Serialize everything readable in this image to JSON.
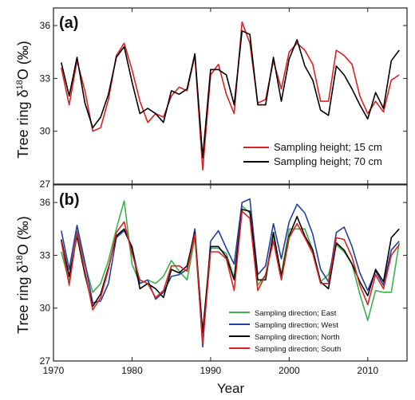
{
  "chart_data": [
    {
      "type": "line",
      "panel_label": "(a)",
      "ylabel": "Tree ring δ18O (‰)",
      "ylim": [
        27,
        37
      ],
      "yticks": [
        27,
        30,
        33,
        36
      ],
      "xlim": [
        1970,
        2015
      ],
      "legend": "bottom-right",
      "x": [
        1971,
        1972,
        1973,
        1974,
        1975,
        1976,
        1977,
        1978,
        1979,
        1980,
        1981,
        1982,
        1983,
        1984,
        1985,
        1986,
        1987,
        1988,
        1989,
        1990,
        1991,
        1992,
        1993,
        1994,
        1995,
        1996,
        1997,
        1998,
        1999,
        2000,
        2001,
        2002,
        2003,
        2004,
        2005,
        2006,
        2007,
        2008,
        2009,
        2010,
        2011,
        2012,
        2013,
        2014
      ],
      "series": [
        {
          "name": "Sampling height; 15 cm",
          "color": "#e02020",
          "values": [
            33.6,
            31.5,
            34.0,
            32.3,
            30.0,
            30.2,
            31.8,
            34.3,
            35.0,
            33.5,
            31.7,
            30.5,
            31.0,
            30.8,
            32.0,
            32.5,
            32.3,
            34.3,
            27.8,
            33.2,
            33.8,
            32.1,
            31.0,
            36.2,
            35.0,
            31.6,
            31.8,
            34.0,
            32.4,
            34.5,
            35.0,
            34.6,
            33.8,
            31.7,
            31.7,
            34.6,
            34.3,
            33.8,
            32.0,
            31.0,
            31.7,
            31.1,
            32.9,
            33.2
          ]
        },
        {
          "name": "Sampling height; 70 cm",
          "color": "#000000",
          "values": [
            33.9,
            32.0,
            34.2,
            31.6,
            30.2,
            30.8,
            32.1,
            34.2,
            34.8,
            32.8,
            31.0,
            31.3,
            31.0,
            30.5,
            32.3,
            32.1,
            32.4,
            34.4,
            28.5,
            33.5,
            33.5,
            33.2,
            31.5,
            35.7,
            35.5,
            31.5,
            31.5,
            34.2,
            31.7,
            34.1,
            35.2,
            33.7,
            32.9,
            31.2,
            30.9,
            33.7,
            33.2,
            32.4,
            31.5,
            30.7,
            32.2,
            31.3,
            34.0,
            34.6
          ]
        }
      ]
    },
    {
      "type": "line",
      "panel_label": "(b)",
      "ylabel": "Tree ring δ18O (‰)",
      "xlabel": "Year",
      "ylim": [
        27,
        37
      ],
      "yticks": [
        27,
        30,
        33,
        36
      ],
      "xlim": [
        1970,
        2015
      ],
      "xticks": [
        1970,
        1980,
        1990,
        2000,
        2010
      ],
      "legend": "bottom-right",
      "x": [
        1971,
        1972,
        1973,
        1974,
        1975,
        1976,
        1977,
        1978,
        1979,
        1980,
        1981,
        1982,
        1983,
        1984,
        1985,
        1986,
        1987,
        1988,
        1989,
        1990,
        1991,
        1992,
        1993,
        1994,
        1995,
        1996,
        1997,
        1998,
        1999,
        2000,
        2001,
        2002,
        2003,
        2004,
        2005,
        2006,
        2007,
        2008,
        2009,
        2010,
        2011,
        2012,
        2013,
        2014
      ],
      "series": [
        {
          "name": "Sampling direction; East",
          "color": "#3cb04c",
          "values": [
            33.2,
            31.5,
            34.4,
            32.5,
            30.9,
            31.4,
            32.7,
            34.5,
            36.1,
            32.5,
            31.4,
            31.6,
            31.4,
            31.8,
            32.7,
            32.1,
            31.6,
            34.0,
            28.2,
            33.4,
            33.4,
            33.1,
            31.7,
            35.8,
            35.4,
            31.3,
            31.9,
            34.1,
            31.9,
            34.5,
            34.5,
            34.5,
            33.3,
            31.5,
            31.9,
            33.6,
            33.2,
            32.5,
            30.8,
            29.3,
            31.0,
            30.9,
            30.9,
            33.7
          ]
        },
        {
          "name": "Sampling direction; West",
          "color": "#2040a0",
          "values": [
            34.4,
            32.2,
            34.7,
            32.6,
            30.3,
            30.4,
            31.4,
            34.0,
            34.4,
            33.5,
            31.4,
            31.6,
            30.5,
            30.9,
            31.8,
            31.9,
            32.2,
            34.5,
            27.8,
            33.8,
            34.4,
            33.4,
            32.5,
            36.0,
            36.2,
            31.9,
            32.4,
            34.8,
            32.8,
            34.9,
            35.9,
            35.4,
            34.2,
            32.2,
            31.5,
            34.3,
            34.6,
            33.5,
            32.0,
            31.0,
            32.1,
            31.3,
            33.3,
            33.8
          ]
        },
        {
          "name": "Sampling direction; North",
          "color": "#000000",
          "values": [
            33.9,
            31.8,
            34.1,
            31.9,
            30.1,
            30.8,
            32.3,
            34.1,
            34.5,
            33.4,
            31.1,
            31.4,
            31.1,
            30.6,
            32.2,
            32.0,
            32.4,
            34.3,
            28.6,
            33.5,
            33.5,
            32.9,
            31.6,
            35.6,
            35.5,
            31.6,
            31.6,
            34.3,
            31.8,
            34.1,
            35.2,
            34.1,
            33.3,
            31.5,
            31.1,
            33.7,
            33.3,
            32.5,
            31.5,
            30.7,
            32.2,
            31.5,
            34.0,
            34.5
          ]
        },
        {
          "name": "Sampling direction; South",
          "color": "#e02020",
          "values": [
            33.8,
            31.3,
            34.3,
            32.1,
            29.9,
            30.6,
            32.2,
            34.3,
            34.9,
            33.1,
            31.6,
            31.4,
            30.6,
            31.0,
            32.4,
            32.4,
            32.1,
            34.2,
            28.0,
            33.2,
            33.2,
            32.8,
            31.0,
            35.5,
            35.1,
            31.0,
            31.9,
            33.8,
            31.6,
            34.0,
            34.8,
            34.0,
            33.1,
            31.4,
            31.4,
            34.0,
            33.9,
            32.9,
            31.3,
            30.2,
            31.9,
            31.1,
            33.0,
            33.6
          ]
        }
      ]
    }
  ]
}
